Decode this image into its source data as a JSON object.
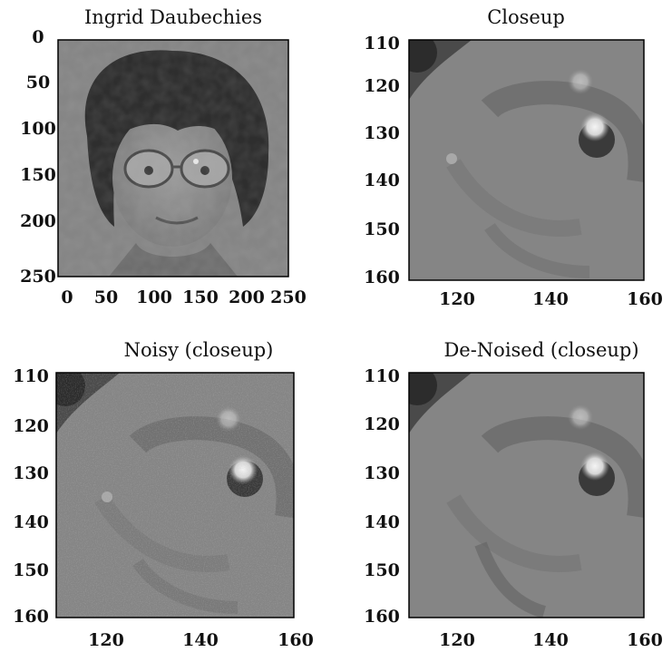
{
  "colors": {
    "frame": "#000000",
    "background": "#ffffff"
  },
  "panels": [
    {
      "id": "original",
      "title": "Ingrid Daubechies",
      "x_ticks": [
        "0",
        "50",
        "100",
        "150",
        "200",
        "250"
      ],
      "y_ticks": [
        "0",
        "50",
        "100",
        "150",
        "200",
        "250"
      ],
      "xlim": [
        0,
        256
      ],
      "ylim": [
        0,
        256
      ],
      "content": "grayscale portrait photo"
    },
    {
      "id": "closeup",
      "title": "Closeup",
      "x_ticks": [
        "120",
        "140",
        "160"
      ],
      "y_ticks": [
        "110",
        "120",
        "130",
        "140",
        "150",
        "160"
      ],
      "xlim": [
        110,
        160
      ],
      "ylim": [
        110,
        160
      ],
      "content": "grayscale closeup of eye region"
    },
    {
      "id": "noisy",
      "title": "Noisy (closeup)",
      "x_ticks": [
        "120",
        "140",
        "160"
      ],
      "y_ticks": [
        "110",
        "120",
        "130",
        "140",
        "150",
        "160"
      ],
      "xlim": [
        110,
        160
      ],
      "ylim": [
        110,
        160
      ],
      "content": "grayscale closeup with added noise"
    },
    {
      "id": "denoised",
      "title": "De-Noised (closeup)",
      "x_ticks": [
        "120",
        "140",
        "160"
      ],
      "y_ticks": [
        "110",
        "120",
        "130",
        "140",
        "150",
        "160"
      ],
      "xlim": [
        110,
        160
      ],
      "ylim": [
        110,
        160
      ],
      "content": "grayscale denoised closeup"
    }
  ]
}
